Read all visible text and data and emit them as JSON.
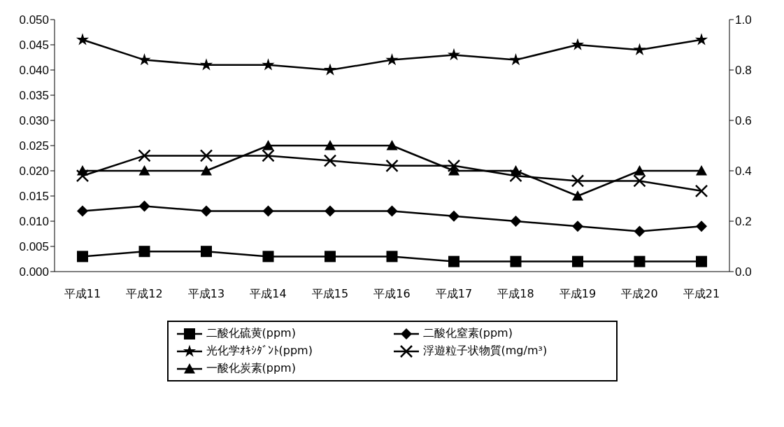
{
  "chart_data": {
    "type": "line",
    "categories": [
      "平成11",
      "平成12",
      "平成13",
      "平成14",
      "平成15",
      "平成16",
      "平成17",
      "平成18",
      "平成19",
      "平成20",
      "平成21"
    ],
    "series": [
      {
        "name": "二酸化硫黄(ppm)",
        "color": "#000000",
        "marker": "square",
        "values": [
          0.003,
          0.004,
          0.004,
          0.003,
          0.003,
          0.003,
          0.002,
          0.002,
          0.002,
          0.002,
          0.002
        ]
      },
      {
        "name": "二酸化窒素(ppm)",
        "color": "#000000",
        "marker": "diamond",
        "values": [
          0.012,
          0.013,
          0.012,
          0.012,
          0.012,
          0.012,
          0.011,
          0.01,
          0.009,
          0.008,
          0.009
        ]
      },
      {
        "name": "光化学ｵｷｼﾀﾞﾝﾄ(ppm)",
        "color": "#000000",
        "marker": "star",
        "values": [
          0.046,
          0.042,
          0.041,
          0.041,
          0.04,
          0.042,
          0.043,
          0.042,
          0.045,
          0.044,
          0.046
        ]
      },
      {
        "name": "浮遊粒子状物質(mg/m³)",
        "color": "#000000",
        "marker": "cross",
        "values": [
          0.019,
          0.023,
          0.023,
          0.023,
          0.022,
          0.021,
          0.021,
          0.019,
          0.018,
          0.018,
          0.016
        ]
      },
      {
        "name": "一酸化炭素(ppm)",
        "color": "#000000",
        "marker": "triangle",
        "axis": "y2",
        "values": [
          0.4,
          0.4,
          0.4,
          0.5,
          0.5,
          0.5,
          0.4,
          0.4,
          0.3,
          0.4,
          0.4
        ]
      }
    ],
    "ylim": [
      0,
      0.05
    ],
    "yticks": [
      {
        "value": 0,
        "label": "0.000"
      },
      {
        "value": 0.005,
        "label": "0.005"
      },
      {
        "value": 0.01,
        "label": "0.010"
      },
      {
        "value": 0.015,
        "label": "0.015"
      },
      {
        "value": 0.02,
        "label": "0.020"
      },
      {
        "value": 0.025,
        "label": "0.025"
      },
      {
        "value": 0.03,
        "label": "0.030"
      },
      {
        "value": 0.035,
        "label": "0.035"
      },
      {
        "value": 0.04,
        "label": "0.040"
      },
      {
        "value": 0.045,
        "label": "0.045"
      },
      {
        "value": 0.05,
        "label": "0.050"
      }
    ],
    "y2lim": [
      0,
      1
    ],
    "y2ticks": [
      {
        "value": 0,
        "label": "0.0"
      },
      {
        "value": 0.2,
        "label": "0.2"
      },
      {
        "value": 0.4,
        "label": "0.4"
      },
      {
        "value": 0.6,
        "label": "0.6"
      },
      {
        "value": 0.8,
        "label": "0.8"
      },
      {
        "value": 1,
        "label": "1.0"
      }
    ],
    "grid": false,
    "legend": "bottom",
    "line_style": "solid"
  }
}
